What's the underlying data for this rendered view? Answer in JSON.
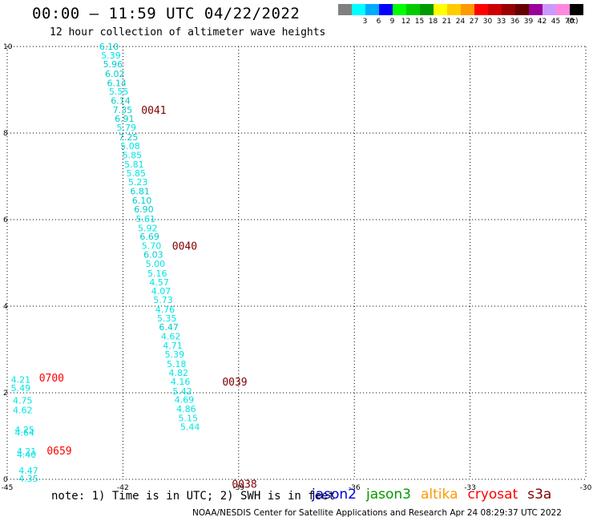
{
  "title": "00:00 – 11:59 UTC 04/22/2022",
  "subtitle": "12 hour collection of altimeter wave heights",
  "note": "note:  1) Time is in UTC; 2) SWH is in feet",
  "credit": "NOAA/NESDIS Center for Satellite Applications and Research   Apr 24 08:29:37 UTC 2022",
  "satellites": [
    {
      "name": "jason2",
      "color": "#0000cc"
    },
    {
      "name": "jason3",
      "color": "#009900"
    },
    {
      "name": "altika",
      "color": "#ff9900"
    },
    {
      "name": "cryosat",
      "color": "#ff0000"
    },
    {
      "name": "s3a",
      "color": "#800000"
    }
  ],
  "colorbar": {
    "unit": "(ft)",
    "bins": [
      {
        "label": "",
        "color": "#808080"
      },
      {
        "label": "3",
        "color": "#00ffff"
      },
      {
        "label": "6",
        "color": "#00aaff"
      },
      {
        "label": "9",
        "color": "#0000ff"
      },
      {
        "label": "12",
        "color": "#00ff00"
      },
      {
        "label": "15",
        "color": "#00cc00"
      },
      {
        "label": "18",
        "color": "#009900"
      },
      {
        "label": "21",
        "color": "#ffff00"
      },
      {
        "label": "24",
        "color": "#ffcc00"
      },
      {
        "label": "27",
        "color": "#ff9900"
      },
      {
        "label": "30",
        "color": "#ff0000"
      },
      {
        "label": "33",
        "color": "#cc0000"
      },
      {
        "label": "36",
        "color": "#990000"
      },
      {
        "label": "39",
        "color": "#660000"
      },
      {
        "label": "42",
        "color": "#990099"
      },
      {
        "label": "45",
        "color": "#cc99ff"
      },
      {
        "label": "70",
        "color": "#ff88dd"
      },
      {
        "label": "",
        "color": "#000000"
      }
    ]
  },
  "chart_data": {
    "type": "scatter",
    "xlim": [
      -45,
      -30
    ],
    "ylim": [
      0,
      10
    ],
    "x_ticks": [
      -45,
      -42,
      -39,
      -36,
      -33,
      -30
    ],
    "x_tick_labels": [
      "-45",
      "-42",
      "-39",
      "-36",
      "-33",
      "-30"
    ],
    "y_ticks": [
      0,
      2,
      4,
      6,
      8,
      10
    ],
    "y_tick_labels": [
      "0",
      "2",
      "4",
      "6",
      "8",
      "10"
    ],
    "grid": true,
    "swh_points": [
      {
        "x": -42.36,
        "y": 10.0,
        "label": "6.10",
        "color": "#00cccc"
      },
      {
        "x": -42.31,
        "y": 9.8,
        "label": "5.39",
        "color": "#00e5e5"
      },
      {
        "x": -42.26,
        "y": 9.59,
        "label": "5.96",
        "color": "#00cccc"
      },
      {
        "x": -42.21,
        "y": 9.37,
        "label": "6.02",
        "color": "#00cccc"
      },
      {
        "x": -42.16,
        "y": 9.16,
        "label": "6.14",
        "color": "#00cccc"
      },
      {
        "x": -42.11,
        "y": 8.96,
        "label": "5.55",
        "color": "#00e5e5"
      },
      {
        "x": -42.06,
        "y": 8.75,
        "label": "6.14",
        "color": "#00cccc"
      },
      {
        "x": -42.01,
        "y": 8.54,
        "label": "7.35",
        "color": "#00cccc"
      },
      {
        "x": -41.96,
        "y": 8.33,
        "label": "6.91",
        "color": "#00cccc"
      },
      {
        "x": -41.91,
        "y": 8.13,
        "label": "5.79",
        "color": "#00e5e5"
      },
      {
        "x": -41.86,
        "y": 7.91,
        "label": "7.25",
        "color": "#00cccc"
      },
      {
        "x": -41.81,
        "y": 7.7,
        "label": "5.08",
        "color": "#00e5e5"
      },
      {
        "x": -41.76,
        "y": 7.49,
        "label": "5.85",
        "color": "#00e5e5"
      },
      {
        "x": -41.71,
        "y": 7.28,
        "label": "5.81",
        "color": "#00e5e5"
      },
      {
        "x": -41.66,
        "y": 7.07,
        "label": "5.85",
        "color": "#00e5e5"
      },
      {
        "x": -41.61,
        "y": 6.87,
        "label": "5.23",
        "color": "#00e5e5"
      },
      {
        "x": -41.56,
        "y": 6.66,
        "label": "6.81",
        "color": "#00cccc"
      },
      {
        "x": -41.51,
        "y": 6.44,
        "label": "6.10",
        "color": "#00cccc"
      },
      {
        "x": -41.46,
        "y": 6.24,
        "label": "6.90",
        "color": "#00cccc"
      },
      {
        "x": -41.41,
        "y": 6.02,
        "label": "5.61",
        "color": "#00e5e5"
      },
      {
        "x": -41.36,
        "y": 5.81,
        "label": "5.92",
        "color": "#00e5e5"
      },
      {
        "x": -41.31,
        "y": 5.61,
        "label": "6.69",
        "color": "#00cccc"
      },
      {
        "x": -41.26,
        "y": 5.4,
        "label": "5.70",
        "color": "#00e5e5"
      },
      {
        "x": -41.21,
        "y": 5.19,
        "label": "6.03",
        "color": "#00cccc"
      },
      {
        "x": -41.16,
        "y": 4.98,
        "label": "5.00",
        "color": "#00e5e5"
      },
      {
        "x": -41.11,
        "y": 4.76,
        "label": "5.16",
        "color": "#00e5e5"
      },
      {
        "x": -41.06,
        "y": 4.56,
        "label": "4.57",
        "color": "#00e5e5"
      },
      {
        "x": -41.01,
        "y": 4.35,
        "label": "4.07",
        "color": "#00e5e5"
      },
      {
        "x": -40.96,
        "y": 4.15,
        "label": "5.73",
        "color": "#00e5e5"
      },
      {
        "x": -40.91,
        "y": 3.93,
        "label": "4.76",
        "color": "#00e5e5"
      },
      {
        "x": -40.86,
        "y": 3.72,
        "label": "5.35",
        "color": "#00e5e5"
      },
      {
        "x": -40.81,
        "y": 3.52,
        "label": "6.47",
        "color": "#00cccc"
      },
      {
        "x": -40.76,
        "y": 3.31,
        "label": "4.62",
        "color": "#00e5e5"
      },
      {
        "x": -40.71,
        "y": 3.09,
        "label": "4.71",
        "color": "#00e5e5"
      },
      {
        "x": -40.66,
        "y": 2.89,
        "label": "5.39",
        "color": "#00e5e5"
      },
      {
        "x": -40.61,
        "y": 2.67,
        "label": "5.18",
        "color": "#00e5e5"
      },
      {
        "x": -40.56,
        "y": 2.46,
        "label": "4.82",
        "color": "#00e5e5"
      },
      {
        "x": -40.51,
        "y": 2.26,
        "label": "4.16",
        "color": "#00e5e5"
      },
      {
        "x": -40.46,
        "y": 2.04,
        "label": "5.42",
        "color": "#00e5e5"
      },
      {
        "x": -40.41,
        "y": 1.84,
        "label": "4.69",
        "color": "#00e5e5"
      },
      {
        "x": -40.36,
        "y": 1.63,
        "label": "4.86",
        "color": "#00e5e5"
      },
      {
        "x": -40.31,
        "y": 1.42,
        "label": "5.15",
        "color": "#00e5e5"
      },
      {
        "x": -40.26,
        "y": 1.21,
        "label": "5.44",
        "color": "#00e5e5"
      },
      {
        "x": -44.65,
        "y": 2.31,
        "label": "4.21",
        "color": "#00e5e5"
      },
      {
        "x": -44.65,
        "y": 2.11,
        "label": "5.49",
        "color": "#00e5e5"
      },
      {
        "x": -44.6,
        "y": 1.82,
        "label": "4.75",
        "color": "#00e5e5"
      },
      {
        "x": -44.6,
        "y": 1.6,
        "label": "4.62",
        "color": "#00e5e5"
      },
      {
        "x": -44.55,
        "y": 1.15,
        "label": "4.25",
        "color": "#00e5e5"
      },
      {
        "x": -44.55,
        "y": 1.08,
        "label": "4.64",
        "color": "#00e5e5"
      },
      {
        "x": -44.5,
        "y": 0.65,
        "label": "4.21",
        "color": "#00e5e5"
      },
      {
        "x": -44.5,
        "y": 0.57,
        "label": "4.40",
        "color": "#00e5e5"
      },
      {
        "x": -44.45,
        "y": 0.2,
        "label": "4.47",
        "color": "#00e5e5"
      },
      {
        "x": -44.45,
        "y": 0.02,
        "label": "4.35",
        "color": "#00e5e5"
      }
    ],
    "time_labels": [
      {
        "x": -41.2,
        "y": 8.54,
        "label": "0041",
        "color": "#800000"
      },
      {
        "x": -40.4,
        "y": 5.4,
        "label": "0040",
        "color": "#800000"
      },
      {
        "x": -39.1,
        "y": 2.26,
        "label": "0039",
        "color": "#800000"
      },
      {
        "x": -38.85,
        "y": -0.1,
        "label": "0038",
        "color": "#800000"
      },
      {
        "x": -43.85,
        "y": 2.35,
        "label": "0700",
        "color": "#ff0000"
      },
      {
        "x": -43.65,
        "y": 0.67,
        "label": "0659",
        "color": "#ff0000"
      }
    ]
  }
}
